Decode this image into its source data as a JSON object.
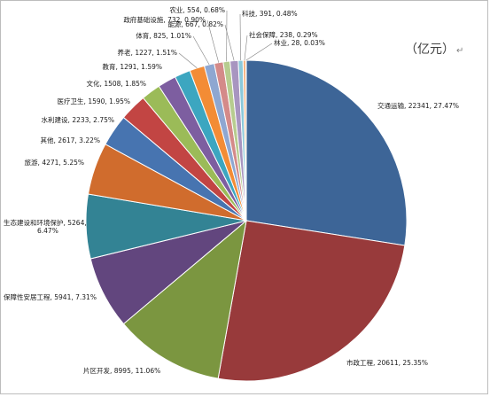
{
  "chart_data": {
    "type": "pie",
    "unit": "（亿元）",
    "return_mark": "↵",
    "slices": [
      {
        "name": "交通运输",
        "value": 22341,
        "percent": "27.47%",
        "color": "#3d6597"
      },
      {
        "name": "市政工程",
        "value": 20611,
        "percent": "25.35%",
        "color": "#983a3b"
      },
      {
        "name": "片区开发",
        "value": 8995,
        "percent": "11.06%",
        "color": "#7b9640"
      },
      {
        "name": "保障性安居工程",
        "value": 5941,
        "percent": "7.31%",
        "color": "#62467e"
      },
      {
        "name": "生态建设和环境保护",
        "value": 5264,
        "percent": "6.47%",
        "color": "#338394"
      },
      {
        "name": "旅游",
        "value": 4271,
        "percent": "5.25%",
        "color": "#d06c2d"
      },
      {
        "name": "其他",
        "value": 2617,
        "percent": "3.22%",
        "color": "#4774b0"
      },
      {
        "name": "水利建设",
        "value": 2233,
        "percent": "2.75%",
        "color": "#c24543"
      },
      {
        "name": "医疗卫生",
        "value": 1590,
        "percent": "1.95%",
        "color": "#9bbb58"
      },
      {
        "name": "文化",
        "value": 1508,
        "percent": "1.85%",
        "color": "#7d5ea0"
      },
      {
        "name": "教育",
        "value": 1291,
        "percent": "1.59%",
        "color": "#3ca6c0"
      },
      {
        "name": "养老",
        "value": 1227,
        "percent": "1.51%",
        "color": "#f38c35"
      },
      {
        "name": "体育",
        "value": 825,
        "percent": "1.01%",
        "color": "#8ea7d1"
      },
      {
        "name": "政府基础设施",
        "value": 732,
        "percent": "0.90%",
        "color": "#d48a89"
      },
      {
        "name": "农业",
        "value": 554,
        "percent": "0.68%",
        "color": "#b7cc8f"
      },
      {
        "name": "能源",
        "value": 667,
        "percent": "0.82%",
        "color": "#a895c0"
      },
      {
        "name": "科技",
        "value": 391,
        "percent": "0.48%",
        "color": "#8cc9da"
      },
      {
        "name": "社会保障",
        "value": 238,
        "percent": "0.29%",
        "color": "#f7b585"
      },
      {
        "name": "林业",
        "value": 28,
        "percent": "0.03%",
        "color": "#b9c8e2"
      }
    ]
  }
}
